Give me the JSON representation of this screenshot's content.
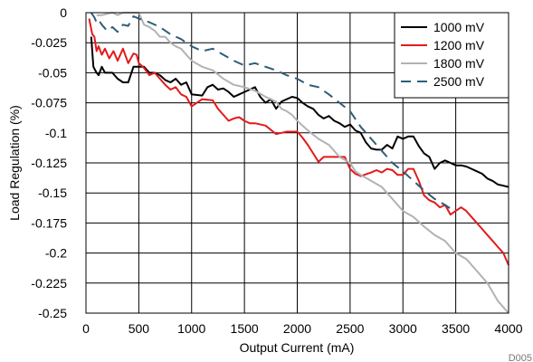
{
  "chart_data": {
    "type": "line",
    "xlabel": "Output Current (mA)",
    "ylabel": "Load Regulation (%)",
    "xlim": [
      0,
      4000
    ],
    "ylim": [
      -0.25,
      0
    ],
    "x_ticks": [
      0,
      500,
      1000,
      1500,
      2000,
      2500,
      3000,
      3500,
      4000
    ],
    "x_tick_labels": [
      "0",
      "500",
      "1000",
      "1500",
      "2000",
      "2500",
      "3000",
      "3500",
      "4000"
    ],
    "y_ticks": [
      0,
      -0.025,
      -0.05,
      -0.075,
      -0.1,
      -0.125,
      -0.15,
      -0.175,
      -0.2,
      -0.225,
      -0.25
    ],
    "y_tick_labels": [
      "0",
      "-0.025",
      "-0.05",
      "-0.075",
      "-0.1",
      "-0.125",
      "-0.15",
      "-0.175",
      "-0.2",
      "-0.225",
      "-0.25"
    ],
    "grid": true,
    "legend_position": "top-right",
    "figure_code": "D005",
    "series": [
      {
        "name": "1000 mV",
        "color": "#000000",
        "dash": "solid",
        "x": [
          50,
          70,
          100,
          120,
          150,
          180,
          200,
          250,
          300,
          350,
          400,
          450,
          500,
          550,
          600,
          650,
          700,
          750,
          800,
          850,
          900,
          950,
          1000,
          1100,
          1150,
          1200,
          1250,
          1300,
          1350,
          1400,
          1450,
          1500,
          1550,
          1600,
          1650,
          1700,
          1750,
          1800,
          1850,
          1900,
          1950,
          2000,
          2050,
          2100,
          2150,
          2200,
          2250,
          2300,
          2350,
          2400,
          2450,
          2500,
          2550,
          2600,
          2650,
          2700,
          2750,
          2800,
          2850,
          2900,
          2950,
          3000,
          3050,
          3100,
          3150,
          3200,
          3250,
          3300,
          3350,
          3400,
          3450,
          3500,
          3550,
          3600,
          3650,
          3700,
          3750,
          3800,
          3850,
          3900,
          3950,
          4000
        ],
        "y": [
          -0.02,
          -0.045,
          -0.05,
          -0.052,
          -0.045,
          -0.05,
          -0.05,
          -0.05,
          -0.055,
          -0.058,
          -0.058,
          -0.045,
          -0.045,
          -0.045,
          -0.05,
          -0.05,
          -0.052,
          -0.056,
          -0.058,
          -0.055,
          -0.06,
          -0.058,
          -0.068,
          -0.069,
          -0.062,
          -0.06,
          -0.064,
          -0.063,
          -0.066,
          -0.07,
          -0.068,
          -0.066,
          -0.064,
          -0.062,
          -0.07,
          -0.075,
          -0.072,
          -0.08,
          -0.074,
          -0.072,
          -0.07,
          -0.071,
          -0.075,
          -0.078,
          -0.08,
          -0.085,
          -0.088,
          -0.086,
          -0.09,
          -0.092,
          -0.095,
          -0.093,
          -0.098,
          -0.1,
          -0.108,
          -0.113,
          -0.114,
          -0.114,
          -0.11,
          -0.113,
          -0.103,
          -0.105,
          -0.103,
          -0.103,
          -0.111,
          -0.117,
          -0.12,
          -0.13,
          -0.125,
          -0.123,
          -0.125,
          -0.127,
          -0.127,
          -0.128,
          -0.13,
          -0.132,
          -0.134,
          -0.138,
          -0.14,
          -0.143,
          -0.144,
          -0.145
        ]
      },
      {
        "name": "1200 mV",
        "color": "#e31a1c",
        "dash": "solid",
        "x": [
          30,
          60,
          80,
          100,
          120,
          150,
          180,
          220,
          260,
          300,
          350,
          400,
          450,
          480,
          500,
          550,
          600,
          650,
          700,
          750,
          800,
          850,
          900,
          950,
          1000,
          1050,
          1100,
          1200,
          1250,
          1300,
          1350,
          1400,
          1450,
          1500,
          1550,
          1600,
          1700,
          1800,
          1850,
          1900,
          1950,
          2000,
          2050,
          2100,
          2150,
          2200,
          2250,
          2300,
          2400,
          2450,
          2500,
          2550,
          2600,
          2700,
          2750,
          2800,
          2850,
          2900,
          2950,
          3000,
          3050,
          3100,
          3150,
          3200,
          3250,
          3300,
          3350,
          3400,
          3450,
          3500,
          3550,
          3600,
          3650,
          3700,
          3750,
          3800,
          3850,
          3900,
          3950,
          4000
        ],
        "y": [
          -0.005,
          -0.018,
          -0.02,
          -0.032,
          -0.028,
          -0.035,
          -0.03,
          -0.038,
          -0.032,
          -0.04,
          -0.03,
          -0.042,
          -0.034,
          -0.035,
          -0.042,
          -0.046,
          -0.052,
          -0.05,
          -0.055,
          -0.06,
          -0.064,
          -0.062,
          -0.068,
          -0.07,
          -0.078,
          -0.075,
          -0.072,
          -0.073,
          -0.08,
          -0.085,
          -0.09,
          -0.088,
          -0.087,
          -0.09,
          -0.092,
          -0.092,
          -0.094,
          -0.101,
          -0.1,
          -0.099,
          -0.099,
          -0.099,
          -0.104,
          -0.11,
          -0.117,
          -0.124,
          -0.12,
          -0.12,
          -0.12,
          -0.12,
          -0.13,
          -0.134,
          -0.136,
          -0.133,
          -0.131,
          -0.133,
          -0.13,
          -0.131,
          -0.135,
          -0.135,
          -0.13,
          -0.13,
          -0.14,
          -0.152,
          -0.156,
          -0.158,
          -0.162,
          -0.16,
          -0.168,
          -0.165,
          -0.162,
          -0.165,
          -0.17,
          -0.175,
          -0.18,
          -0.185,
          -0.19,
          -0.195,
          -0.2,
          -0.21
        ]
      },
      {
        "name": "1800 mV",
        "color": "#b2b2b2",
        "dash": "solid",
        "x": [
          100,
          150,
          200,
          250,
          300,
          350,
          400,
          450,
          500,
          550,
          600,
          650,
          700,
          750,
          800,
          850,
          900,
          950,
          1000,
          1100,
          1200,
          1300,
          1400,
          1500,
          1600,
          1700,
          1800,
          1850,
          1900,
          1950,
          2000,
          2100,
          2200,
          2300,
          2400,
          2500,
          2550,
          2600,
          2700,
          2800,
          2900,
          3000,
          3100,
          3200,
          3300,
          3400,
          3500,
          3600,
          3700,
          3800,
          3900,
          4000
        ],
        "y": [
          -0.002,
          -0.002,
          -0.001,
          0,
          -0.002,
          0,
          0,
          0,
          0,
          -0.01,
          -0.012,
          -0.015,
          -0.02,
          -0.02,
          -0.025,
          -0.028,
          -0.03,
          -0.035,
          -0.04,
          -0.045,
          -0.048,
          -0.055,
          -0.06,
          -0.062,
          -0.065,
          -0.07,
          -0.074,
          -0.08,
          -0.082,
          -0.085,
          -0.09,
          -0.098,
          -0.105,
          -0.11,
          -0.12,
          -0.125,
          -0.132,
          -0.135,
          -0.14,
          -0.145,
          -0.155,
          -0.165,
          -0.17,
          -0.178,
          -0.185,
          -0.19,
          -0.2,
          -0.205,
          -0.215,
          -0.225,
          -0.24,
          -0.25
        ]
      },
      {
        "name": "2500 mV",
        "color": "#2e5d76",
        "dash": "dashed",
        "x": [
          50,
          80,
          100,
          120,
          150,
          200,
          250,
          300,
          350,
          400,
          450,
          500,
          600,
          700,
          800,
          900,
          1000,
          1100,
          1200,
          1300,
          1400,
          1500,
          1600,
          1700,
          1800,
          1900,
          2000,
          2100,
          2200,
          2300,
          2400,
          2500,
          2600,
          2700,
          2800,
          2900,
          3000,
          3100,
          3200,
          3300,
          3400,
          3450
        ],
        "y": [
          0,
          -0.004,
          -0.008,
          -0.006,
          -0.01,
          -0.015,
          -0.012,
          -0.016,
          -0.01,
          -0.011,
          -0.003,
          -0.005,
          -0.008,
          -0.012,
          -0.018,
          -0.022,
          -0.028,
          -0.032,
          -0.03,
          -0.035,
          -0.04,
          -0.044,
          -0.042,
          -0.045,
          -0.048,
          -0.052,
          -0.055,
          -0.06,
          -0.062,
          -0.068,
          -0.075,
          -0.082,
          -0.095,
          -0.105,
          -0.115,
          -0.125,
          -0.132,
          -0.14,
          -0.148,
          -0.155,
          -0.16,
          -0.163
        ]
      }
    ]
  }
}
